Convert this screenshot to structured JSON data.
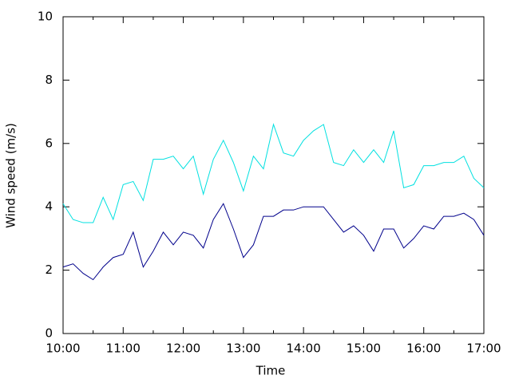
{
  "chart_data": {
    "type": "line",
    "x_label": "Time",
    "y_label": "Wind speed (m/s)",
    "x": [
      "10:00",
      "10:10",
      "10:20",
      "10:30",
      "10:40",
      "10:50",
      "11:00",
      "11:10",
      "11:20",
      "11:30",
      "11:40",
      "11:50",
      "12:00",
      "12:10",
      "12:20",
      "12:30",
      "12:40",
      "12:50",
      "13:00",
      "13:10",
      "13:20",
      "13:30",
      "13:40",
      "13:50",
      "14:00",
      "14:10",
      "14:20",
      "14:30",
      "14:40",
      "14:50",
      "15:00",
      "15:10",
      "15:20",
      "15:30",
      "15:40",
      "15:50",
      "16:00",
      "16:10",
      "16:20",
      "16:30",
      "16:40",
      "16:50",
      "17:00"
    ],
    "series": [
      {
        "color": "#00e0e0",
        "values": [
          4.1,
          3.6,
          3.5,
          3.5,
          4.3,
          3.6,
          4.7,
          4.8,
          4.2,
          5.5,
          5.5,
          5.6,
          5.2,
          5.6,
          4.4,
          5.5,
          6.1,
          5.4,
          4.5,
          5.6,
          5.2,
          6.6,
          5.7,
          5.6,
          6.1,
          6.4,
          6.6,
          5.4,
          5.3,
          5.8,
          5.4,
          5.8,
          5.4,
          6.4,
          4.6,
          4.7,
          5.3,
          5.3,
          5.4,
          5.4,
          5.6,
          4.9,
          4.6
        ]
      },
      {
        "color": "#00008b",
        "values": [
          2.1,
          2.2,
          1.9,
          1.7,
          2.1,
          2.4,
          2.5,
          3.2,
          2.1,
          2.6,
          3.2,
          2.8,
          3.2,
          3.1,
          2.7,
          3.6,
          4.1,
          3.3,
          2.4,
          2.8,
          3.7,
          3.7,
          3.9,
          3.9,
          4.0,
          4.0,
          4.0,
          3.6,
          3.2,
          3.4,
          3.1,
          2.6,
          3.3,
          3.3,
          2.7,
          3.0,
          3.4,
          3.3,
          3.7,
          3.7,
          3.8,
          3.6,
          3.1
        ]
      }
    ],
    "xlim": [
      "10:00",
      "17:00"
    ],
    "xticks": [
      "10:00",
      "11:00",
      "12:00",
      "13:00",
      "14:00",
      "15:00",
      "16:00",
      "17:00"
    ],
    "ylim": [
      0,
      10
    ],
    "yticks": [
      0,
      2,
      4,
      6,
      8,
      10
    ]
  }
}
